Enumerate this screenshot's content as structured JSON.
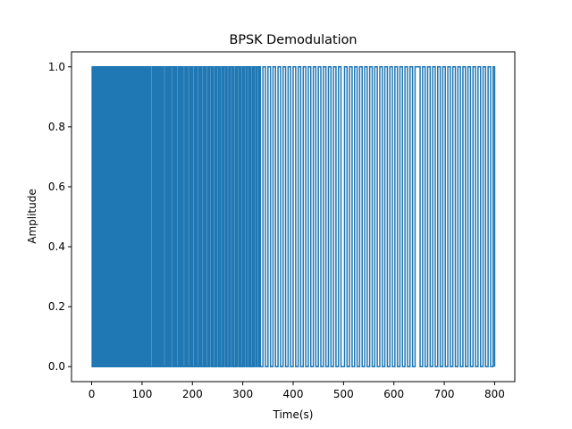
{
  "chart_data": {
    "type": "line",
    "title": "BPSK Demodulation",
    "xlabel": "Time(s)",
    "ylabel": "Amplitude",
    "xlim": [
      -40,
      840
    ],
    "ylim": [
      -0.05,
      1.05
    ],
    "x_ticks": [
      0,
      100,
      200,
      300,
      400,
      500,
      600,
      700,
      800
    ],
    "x_tick_labels": [
      "0",
      "100",
      "200",
      "300",
      "400",
      "500",
      "600",
      "700",
      "800"
    ],
    "y_ticks": [
      0.0,
      0.2,
      0.4,
      0.6,
      0.8,
      1.0
    ],
    "y_tick_labels": [
      "0.0",
      "0.2",
      "0.4",
      "0.6",
      "0.8",
      "1.0"
    ],
    "grid": false,
    "series": [
      {
        "color": "#1f77b4",
        "x_start": 0,
        "x_end": 800,
        "values_description_free": true,
        "transitions": [
          0,
          1,
          1,
          1,
          2,
          2,
          2,
          3,
          3,
          4,
          5,
          7,
          8,
          10,
          11,
          11,
          12,
          13,
          14,
          15,
          16,
          16,
          17,
          18,
          20,
          21,
          22,
          24,
          25,
          27,
          28,
          30,
          31,
          33,
          35,
          36,
          38,
          40,
          42,
          43,
          45,
          46,
          48,
          49,
          51,
          52,
          54,
          56,
          57,
          59,
          61,
          63,
          64,
          66,
          68,
          69,
          71,
          73,
          75,
          77,
          78,
          80,
          82,
          84,
          86,
          88,
          89,
          91,
          93,
          95,
          97,
          98,
          100,
          102,
          104,
          106,
          108,
          110,
          112,
          114,
          116,
          118,
          121,
          123,
          125,
          127,
          129,
          131,
          133,
          135,
          137,
          139,
          141,
          143,
          146,
          148,
          150,
          152,
          154,
          156,
          158,
          161,
          163,
          165,
          167,
          169,
          172,
          174,
          176,
          178,
          180,
          182,
          185,
          187,
          189,
          191,
          194,
          196,
          198,
          200,
          203,
          205,
          207,
          209,
          212,
          214,
          216,
          218,
          221,
          223,
          225,
          227,
          230,
          232,
          234,
          237,
          239,
          241,
          244,
          246,
          248,
          251,
          253,
          255,
          258,
          260,
          262,
          265,
          267,
          269,
          272,
          274,
          276,
          279,
          281,
          283,
          286,
          288,
          290,
          293,
          295,
          297,
          300,
          302,
          304,
          307,
          309,
          312,
          314,
          316,
          319,
          321,
          323,
          326,
          328,
          331,
          333,
          335,
          340,
          345,
          350,
          355,
          360,
          365,
          370,
          375,
          380,
          385,
          390,
          395,
          400,
          405,
          410,
          415,
          420,
          425,
          430,
          435,
          440,
          445,
          450,
          455,
          460,
          465,
          470,
          475,
          480,
          485,
          490,
          495,
          502,
          507,
          512,
          517,
          522,
          527,
          532,
          537,
          542,
          547,
          552,
          557,
          562,
          567,
          572,
          577,
          582,
          587,
          592,
          597,
          602,
          607,
          612,
          617,
          622,
          627,
          632,
          637,
          642,
          652,
          657,
          662,
          667,
          672,
          677,
          682,
          687,
          692,
          697,
          702,
          707,
          712,
          717,
          722,
          727,
          732,
          737,
          742,
          747,
          752,
          757,
          762,
          767,
          772,
          777,
          782,
          787,
          792,
          797,
          800
        ],
        "start_value": 1,
        "low_value": 0,
        "high_value": 1
      }
    ]
  }
}
